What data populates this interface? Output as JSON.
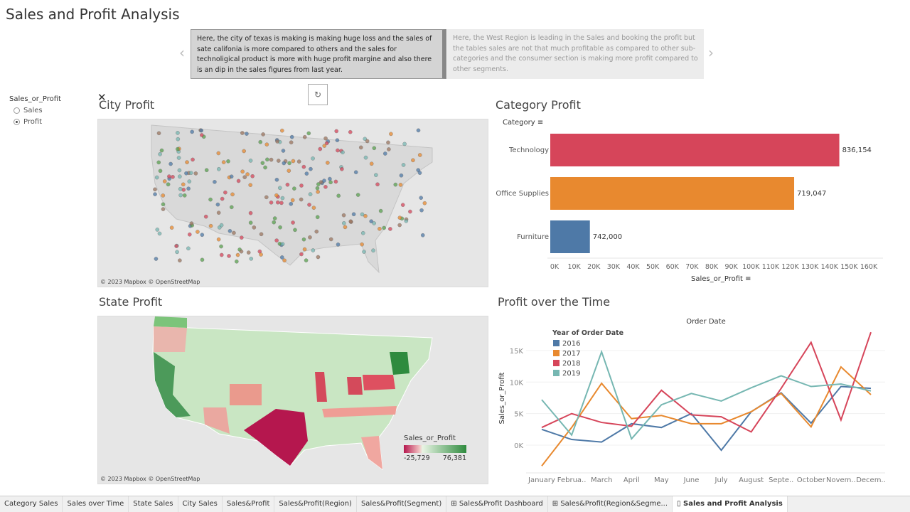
{
  "title": "Sales and Profit Analysis",
  "story": {
    "points": [
      "Here, the city of texas is making is making huge loss and the sales of sate califonia is more compared to others and the sales for technoligical product is more with huge profit margine  and also there is an dip in the sales figures from last year.",
      "Here, the West Region is leading in the Sales and booking the profit but the tables sales are not that much profitable as compared to other sub-categories and the consumer section is making more profit compared to other segments."
    ],
    "prev": "‹",
    "next": "›",
    "refresh": "↻"
  },
  "parameter": {
    "label": "Sales_or_Profit",
    "options": [
      "Sales",
      "Profit"
    ],
    "selected": "Profit"
  },
  "close": "✕",
  "city_map": {
    "title": "City Profit",
    "attribution": "© 2023 Mapbox © OpenStreetMap"
  },
  "state_map": {
    "title": "State Profit",
    "attribution": "© 2023 Mapbox © OpenStreetMap",
    "legend": {
      "title": "Sales_or_Profit",
      "min": "-25,729",
      "max": "76,381",
      "colors": [
        "#b5174e",
        "#f2c2c2",
        "#2e8b3e"
      ]
    }
  },
  "chart_data": [
    {
      "type": "bar",
      "title": "Category Profit",
      "category_header": "Category",
      "categories": [
        "Technology",
        "Office Supplies",
        "Furniture"
      ],
      "values": [
        145000,
        122000,
        18000
      ],
      "data_labels": [
        "836,154",
        "719,047",
        "742,000"
      ],
      "colors": [
        "#d6455a",
        "#e8892f",
        "#4e79a7"
      ],
      "xlabel": "Sales_or_Profit",
      "xlim": [
        0,
        160000
      ],
      "ticks": [
        "0K",
        "10K",
        "20K",
        "30K",
        "40K",
        "50K",
        "60K",
        "70K",
        "80K",
        "90K",
        "100K",
        "110K",
        "120K",
        "130K",
        "140K",
        "150K",
        "160K"
      ]
    },
    {
      "type": "line",
      "title": "Profit  over the Time",
      "xlabel": "Order Date",
      "ylabel": "Sales_or_Profit",
      "legend_title": "Year of Order Date",
      "legend": "top-left",
      "categories": [
        "January",
        "Februa..",
        "March",
        "April",
        "May",
        "June",
        "July",
        "August",
        "Septe..",
        "October",
        "Novem..",
        "Decem.."
      ],
      "ylim": [
        -4000,
        19000
      ],
      "yticks": [
        "0K",
        "5K",
        "10K",
        "15K"
      ],
      "series": [
        {
          "name": "2016",
          "color": "#4e79a7",
          "values": [
            2500,
            900,
            500,
            3400,
            2800,
            5000,
            -800,
            5300,
            8300,
            3500,
            9300,
            9000
          ]
        },
        {
          "name": "2017",
          "color": "#e8892f",
          "values": [
            -3300,
            2800,
            9800,
            4200,
            4700,
            3400,
            3400,
            5300,
            8200,
            2900,
            12400,
            8000
          ]
        },
        {
          "name": "2018",
          "color": "#d6455a",
          "values": [
            2800,
            5000,
            3600,
            3000,
            8700,
            4800,
            4500,
            2100,
            9000,
            16300,
            4000,
            17900
          ]
        },
        {
          "name": "2019",
          "color": "#76b7b2",
          "values": [
            7200,
            1600,
            14800,
            1000,
            6400,
            8200,
            7000,
            9100,
            11000,
            9300,
            9700,
            8600
          ]
        }
      ]
    }
  ],
  "tabs": [
    "Category Sales",
    "Sales over Time",
    "State Sales",
    "City Sales",
    "Sales&Profit",
    "Sales&Profit(Region)",
    "Sales&Profit(Segment)",
    "⊞ Sales&Profit Dashboard",
    "⊞ Sales&Profit(Region&Segme...",
    "▯ Sales and Profit Analysis"
  ],
  "active_tab": "▯ Sales and Profit Analysis"
}
